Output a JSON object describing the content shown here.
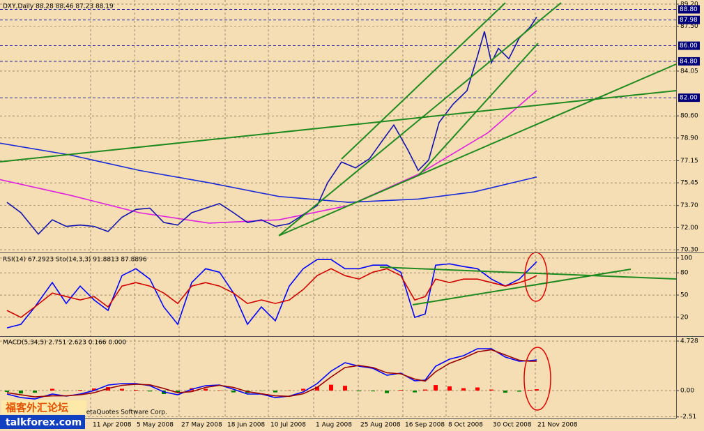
{
  "chart_data": [
    {
      "type": "line",
      "title": "DXY,Daily  88.28 88.46 87.23 88.19",
      "xlim": [
        0,
        242.5
      ],
      "ylim": [
        70.09,
        89.52
      ],
      "grid": true,
      "yticks": [
        {
          "value": 70.3,
          "label": "70.30"
        },
        {
          "value": 72,
          "label": "72.00"
        },
        {
          "value": 73.7,
          "label": "73.70"
        },
        75.45,
        77.15,
        {
          "value": 78.9,
          "label": "78.90"
        },
        {
          "value": 80.6,
          "label": "80.60"
        },
        84.05,
        {
          "value": 87.5,
          "label": "87.50"
        },
        {
          "value": 89.2,
          "label": "89.20"
        }
      ],
      "hlines": [
        {
          "value": 88.8,
          "label": "88.80"
        },
        87.98,
        {
          "value": 86,
          "label": "86.00"
        },
        {
          "value": 84.8,
          "label": "84.80"
        },
        {
          "value": 82,
          "label": "82.00"
        }
      ],
      "series": [
        {
          "color": "#1a2ad8",
          "x": [
            0,
            25,
            50,
            75,
            100,
            125,
            150,
            170,
            192.5
          ],
          "values": [
            78.5,
            77.6,
            76.4,
            75.45,
            74.4,
            73.95,
            74.2,
            74.75,
            75.9
          ]
        },
        {
          "color": "#e020e0",
          "x": [
            0,
            25,
            50,
            75,
            100,
            125,
            150,
            175,
            192.5
          ],
          "values": [
            75.7,
            74.5,
            73.15,
            72.35,
            72.6,
            73.7,
            76.1,
            79.3,
            82.55
          ]
        },
        {
          "color": "#1010b0",
          "x": [
            2.5,
            7.5,
            13.75,
            18.75,
            23.75,
            28.75,
            33.75,
            38.75,
            43.75,
            48.75,
            53.75,
            58.75,
            63.75,
            68.75,
            73.75,
            78.75,
            83.75,
            88.75,
            93.75,
            98.75,
            103.75,
            108.75,
            113.75,
            117.5,
            122.5,
            127.5,
            132.5,
            137.5,
            141.25,
            146.25,
            150,
            153.75,
            157.5,
            162.5,
            167.5,
            171.25,
            173.75,
            176.25,
            178.75,
            182.5,
            186.25,
            190,
            192.5
          ],
          "values": [
            73.95,
            73.15,
            71.5,
            72.6,
            72.1,
            72.2,
            72.1,
            71.7,
            72.8,
            73.4,
            73.5,
            72.4,
            72.2,
            73.15,
            73.5,
            73.85,
            73.15,
            72.4,
            72.6,
            72.1,
            72.3,
            73.0,
            73.7,
            75.45,
            77.05,
            76.6,
            77.3,
            78.8,
            79.9,
            78.0,
            76.4,
            77.2,
            80.1,
            81.5,
            82.55,
            85.2,
            87.1,
            84.7,
            85.8,
            85.0,
            86.6,
            87.4,
            88.2
          ]
        }
      ]
    },
    {
      "type": "line",
      "title": "RSI(14) 67.2923  Sto(14,3,3) 91.8813 87.8896",
      "xlim": [
        0,
        242.5
      ],
      "ylim": [
        -5.6,
        106.6
      ],
      "grid": true,
      "yticks": [
        20,
        50,
        80,
        100
      ],
      "x": [
        2.5,
        7.5,
        12.5,
        18.75,
        23.75,
        28.75,
        33.75,
        38.75,
        43.75,
        48.75,
        53.75,
        58.75,
        63.75,
        68.75,
        73.75,
        78.75,
        83.75,
        88.75,
        93.75,
        98.75,
        103.75,
        108.75,
        113.75,
        118.75,
        123.75,
        128.75,
        133.75,
        138.75,
        143.75,
        148.75,
        152.5,
        156.25,
        161.25,
        166.25,
        171.25,
        176.25,
        181.25,
        186.25,
        190,
        192.5
      ],
      "series": [
        {
          "color": "#0000ff",
          "values": [
            5.6,
            10.4,
            33.9,
            66.8,
            38.6,
            62.1,
            43.3,
            29.2,
            76.2,
            85.6,
            71.5,
            33.9,
            10.4,
            66.8,
            85.6,
            80.9,
            52.7,
            10.4,
            33.9,
            15.1,
            62.1,
            85.6,
            97.9,
            97.9,
            85.6,
            85.6,
            90.4,
            90.4,
            80.9,
            19.8,
            24.5,
            90.4,
            92.2,
            88.5,
            85.6,
            71.5,
            62.1,
            71.5,
            85.6,
            95.1
          ]
        },
        {
          "color": "#d00000",
          "values": [
            29.2,
            19.8,
            33.9,
            52.7,
            48.0,
            43.3,
            48.0,
            33.9,
            62.1,
            66.8,
            62.1,
            52.7,
            38.6,
            62.1,
            66.8,
            62.1,
            52.7,
            38.6,
            43.3,
            38.6,
            43.3,
            57.4,
            76.2,
            85.6,
            76.2,
            71.5,
            80.9,
            85.6,
            76.2,
            43.3,
            48.0,
            71.5,
            66.8,
            71.5,
            71.5,
            66.8,
            62.1,
            66.8,
            71.5,
            76.2
          ]
        }
      ]
    },
    {
      "type": "line",
      "title": "MACD(5,34,5) 2.751 2.623 0.166 0.000",
      "xlim": [
        0,
        242.5
      ],
      "ylim": [
        -2.66,
        5.13
      ],
      "grid": true,
      "yticks": [
        -2.51,
        {
          "value": 0,
          "label": "0.00"
        },
        4.728
      ],
      "xticks": [
        {
          "value": 32.5,
          "label": "11 Apr 2008"
        },
        {
          "value": 48.25,
          "label": "5 May 2008"
        },
        {
          "value": 64.25,
          "label": "27 May 2008"
        },
        {
          "value": 80.75,
          "label": "18 Jun 2008"
        },
        {
          "value": 96.25,
          "label": "10 Jul 2008"
        },
        {
          "value": 112.5,
          "label": "1 Aug 2008"
        },
        {
          "value": 128.5,
          "label": "25 Aug 2008"
        },
        {
          "value": 144.5,
          "label": "16 Sep 2008"
        },
        {
          "value": 160,
          "label": "8 Oct 2008"
        },
        {
          "value": 176,
          "label": "30 Oct 2008"
        },
        {
          "value": 192,
          "label": "21 Nov 2008"
        }
      ],
      "x": [
        2.5,
        7.5,
        12.5,
        18.75,
        23.75,
        28.75,
        33.75,
        38.75,
        43.75,
        48.75,
        53.75,
        58.75,
        63.75,
        68.75,
        73.75,
        78.75,
        83.75,
        88.75,
        93.75,
        98.75,
        103.75,
        108.75,
        113.75,
        118.75,
        123.75,
        128.75,
        133.75,
        138.75,
        143.75,
        148.75,
        152.5,
        156.25,
        161.25,
        166.25,
        171.25,
        176.25,
        181.25,
        186.25,
        190,
        192.5
      ],
      "histogram": [
        -0.13,
        -0.27,
        -0.2,
        0.17,
        -0.03,
        0.07,
        0.2,
        0.33,
        0.17,
        0.07,
        -0.08,
        -0.33,
        -0.2,
        0.23,
        0.17,
        0.03,
        -0.17,
        -0.23,
        -0.03,
        -0.17,
        0.02,
        0.17,
        0.37,
        0.56,
        0.46,
        -0.07,
        -0.07,
        -0.24,
        0.06,
        -0.17,
        0.1,
        0.53,
        0.4,
        0.23,
        0.3,
        0.1,
        -0.2,
        -0.1,
        0.06,
        0.13
      ],
      "histogram_colors": {
        "up": "#ff0000",
        "down": "#008000"
      },
      "series": [
        {
          "color": "#0000ff",
          "values": [
            -0.33,
            -0.67,
            -0.8,
            -0.33,
            -0.53,
            -0.33,
            0,
            0.53,
            0.67,
            0.67,
            0.47,
            -0.13,
            -0.4,
            0.13,
            0.47,
            0.53,
            0.13,
            -0.33,
            -0.33,
            -0.67,
            -0.53,
            -0.13,
            0.67,
            1.86,
            2.66,
            2.33,
            2.13,
            1.46,
            1.66,
            0.93,
            1.0,
            2.33,
            3.0,
            3.33,
            4.0,
            4.0,
            3.2,
            2.8,
            2.86,
            2.93
          ]
        },
        {
          "color": "#990000",
          "values": [
            -0.2,
            -0.4,
            -0.6,
            -0.5,
            -0.5,
            -0.4,
            -0.2,
            0.2,
            0.5,
            0.6,
            0.55,
            0.2,
            -0.2,
            -0.1,
            0.3,
            0.5,
            0.3,
            -0.1,
            -0.3,
            -0.5,
            -0.55,
            -0.3,
            0.3,
            1.3,
            2.2,
            2.4,
            2.2,
            1.7,
            1.6,
            1.1,
            0.9,
            1.8,
            2.6,
            3.1,
            3.7,
            3.9,
            3.4,
            2.9,
            2.8,
            2.8
          ]
        }
      ]
    }
  ],
  "overlay": {
    "copyright": "MetaQuotes Software Corp.",
    "forum": "福客外汇论坛",
    "site": "talkforex.com"
  }
}
